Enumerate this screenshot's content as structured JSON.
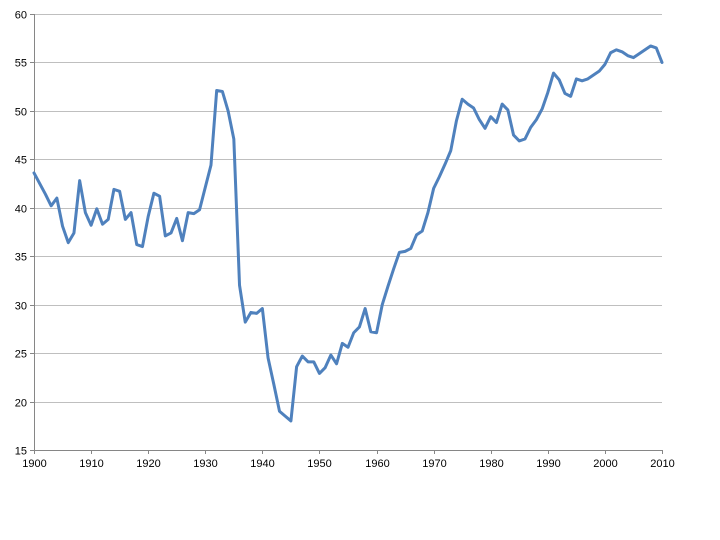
{
  "chart_data": {
    "type": "line",
    "title": "",
    "xlabel": "",
    "ylabel": "",
    "xlim": [
      1900,
      2010
    ],
    "ylim": [
      15,
      60
    ],
    "grid": true,
    "legend": "none",
    "x_ticks": [
      "1900",
      "1910",
      "1920",
      "1930",
      "1940",
      "1950",
      "1960",
      "1970",
      "1980",
      "1990",
      "2000",
      "2010"
    ],
    "y_ticks": [
      "15",
      "20",
      "25",
      "30",
      "35",
      "40",
      "45",
      "50",
      "55",
      "60"
    ],
    "line_color": "#4f81bd",
    "series": [
      {
        "x": [
          1900,
          1901,
          1902,
          1903,
          1904,
          1905,
          1906,
          1907,
          1908,
          1909,
          1910,
          1911,
          1912,
          1913,
          1914,
          1915,
          1916,
          1917,
          1918,
          1919,
          1920,
          1921,
          1922,
          1923,
          1924,
          1925,
          1926,
          1927,
          1928,
          1929,
          1930,
          1931,
          1932,
          1933,
          1934,
          1935,
          1936,
          1937,
          1938,
          1939,
          1940,
          1941,
          1942,
          1943,
          1944,
          1945,
          1946,
          1947,
          1948,
          1949,
          1950,
          1951,
          1952,
          1953,
          1954,
          1955,
          1956,
          1957,
          1958,
          1959,
          1960,
          1961,
          1962,
          1963,
          1964,
          1965,
          1966,
          1967,
          1968,
          1969,
          1970,
          1971,
          1972,
          1973,
          1974,
          1975,
          1976,
          1977,
          1978,
          1979,
          1980,
          1981,
          1982,
          1983,
          1984,
          1985,
          1986,
          1987,
          1988,
          1989,
          1990,
          1991,
          1992,
          1993,
          1994,
          1995,
          1996,
          1997,
          1998,
          1999,
          2000,
          2001,
          2002,
          2003,
          2004,
          2005,
          2006,
          2007,
          2008,
          2009,
          2010
        ],
        "values": [
          43.6,
          42.5,
          41.4,
          40.2,
          41.0,
          38.1,
          36.4,
          37.4,
          42.8,
          39.5,
          38.2,
          39.9,
          38.3,
          38.8,
          41.9,
          41.7,
          38.8,
          39.5,
          36.2,
          36.0,
          39.1,
          41.5,
          41.2,
          37.1,
          37.4,
          38.9,
          36.6,
          39.5,
          39.4,
          39.8,
          42.1,
          44.4,
          52.1,
          52.0,
          50.0,
          47.1,
          32.0,
          28.2,
          29.2,
          29.1,
          29.6,
          24.5,
          21.8,
          19.0,
          18.5,
          18.0,
          23.6,
          24.7,
          24.1,
          24.1,
          22.9,
          23.5,
          24.8,
          23.9,
          26.0,
          25.6,
          27.1,
          27.7,
          29.6,
          27.2,
          27.1,
          30.0,
          31.9,
          33.7,
          35.4,
          35.5,
          35.8,
          37.2,
          37.6,
          39.5,
          42.0,
          43.2,
          44.5,
          45.9,
          49.0,
          51.2,
          50.7,
          50.3,
          49.1,
          48.2,
          49.4,
          48.8,
          50.7,
          50.1,
          47.5,
          46.9,
          47.1,
          48.3,
          49.1,
          50.2,
          51.9,
          53.9,
          53.2,
          51.8,
          51.5,
          53.3,
          53.1,
          53.3,
          53.7,
          54.1,
          54.8,
          56.0,
          56.3,
          56.1,
          55.7,
          55.5,
          55.9,
          56.3,
          56.7,
          56.5,
          55.0
        ]
      }
    ]
  }
}
